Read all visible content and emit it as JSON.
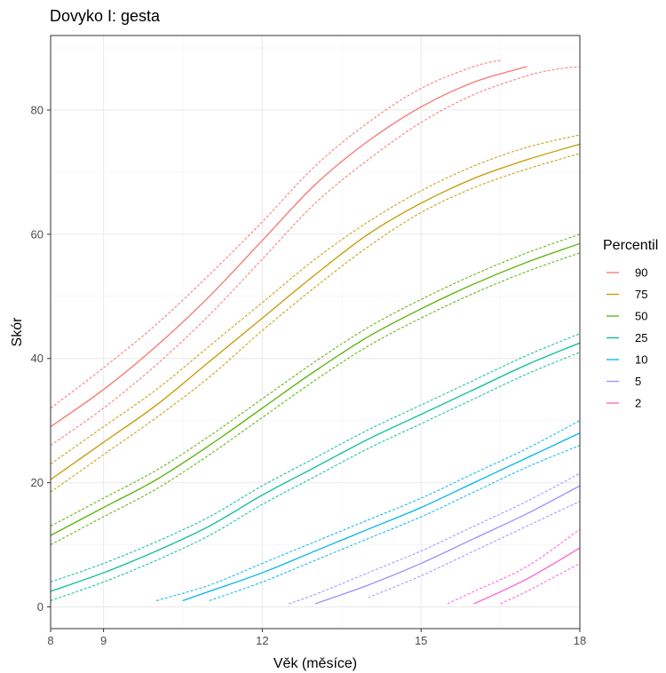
{
  "chart_data": {
    "type": "line",
    "title": "Dovyko I: gesta",
    "xlabel": "Věk (měsíce)",
    "ylabel": "Skór",
    "xlim": [
      8,
      18
    ],
    "ylim": [
      -3.5,
      92
    ],
    "x_ticks": [
      8,
      9,
      12,
      15,
      18
    ],
    "x_minor_grid": [
      10.5,
      13.5,
      16.5
    ],
    "y_ticks": [
      0,
      20,
      40,
      60,
      80
    ],
    "y_minor_grid": [
      10,
      30,
      50,
      70,
      90
    ],
    "grid": true,
    "legend": {
      "title": "Percentil",
      "position": "right"
    },
    "series": [
      {
        "name": "90",
        "color": "#F8766D",
        "x": [
          8,
          9,
          10,
          11,
          12,
          13,
          14,
          15,
          16,
          17
        ],
        "y": [
          29,
          35,
          42,
          50,
          59,
          68,
          75,
          80.5,
          84.5,
          87
        ],
        "upper": {
          "x": [
            8,
            9,
            10,
            11,
            12,
            13,
            14,
            15,
            16,
            16.5
          ],
          "y": [
            32,
            38.5,
            45.5,
            53.5,
            62,
            71,
            78,
            83.5,
            87,
            88
          ]
        },
        "lower": {
          "x": [
            8,
            9,
            10,
            11,
            12,
            13,
            14,
            15,
            16,
            17,
            17.5,
            18
          ],
          "y": [
            26,
            32,
            39,
            47,
            56,
            65,
            72,
            78,
            82.5,
            85.5,
            86.5,
            87
          ]
        }
      },
      {
        "name": "75",
        "color": "#C49A00",
        "x": [
          8,
          9,
          10,
          11,
          12,
          13,
          14,
          15,
          16,
          17,
          18
        ],
        "y": [
          20.5,
          26.5,
          32.5,
          39.5,
          46.5,
          53.5,
          60,
          65,
          69,
          72,
          74.5
        ],
        "upper": {
          "x": [
            8,
            9,
            10,
            11,
            12,
            13,
            14,
            15,
            16,
            17,
            18
          ],
          "y": [
            23,
            29,
            35,
            42,
            49,
            56,
            62,
            67,
            71,
            74,
            76
          ]
        },
        "lower": {
          "x": [
            8,
            9,
            10,
            11,
            12,
            13,
            14,
            15,
            16,
            17,
            18
          ],
          "y": [
            18.5,
            24.5,
            30.5,
            37,
            44.5,
            51.5,
            58,
            63.5,
            67.5,
            70.5,
            73
          ]
        }
      },
      {
        "name": "50",
        "color": "#53B400",
        "x": [
          8,
          9,
          10,
          11,
          12,
          13,
          14,
          15,
          16,
          17,
          18
        ],
        "y": [
          11.5,
          16,
          20.5,
          26,
          32,
          38,
          43.5,
          48,
          52,
          55.5,
          58.5
        ],
        "upper": {
          "x": [
            8,
            9,
            10,
            11,
            12,
            13,
            14,
            15,
            16,
            17,
            18
          ],
          "y": [
            13,
            17.5,
            22,
            27.5,
            33.5,
            39.5,
            45,
            49.5,
            53.5,
            57,
            60
          ]
        },
        "lower": {
          "x": [
            8,
            9,
            10,
            11,
            12,
            13,
            14,
            15,
            16,
            17,
            18
          ],
          "y": [
            10,
            14.5,
            19,
            24.5,
            30.5,
            36.5,
            42,
            46.5,
            50.5,
            54,
            57
          ]
        }
      },
      {
        "name": "25",
        "color": "#00C094",
        "x": [
          8,
          9,
          10,
          11,
          12,
          13,
          14,
          15,
          16,
          17,
          18
        ],
        "y": [
          2.5,
          5.5,
          9,
          13,
          18,
          22.5,
          27,
          31,
          35,
          39,
          42.5
        ],
        "upper": {
          "x": [
            8,
            9,
            10,
            11,
            12,
            13,
            14,
            15,
            16,
            17,
            18
          ],
          "y": [
            4,
            7,
            10.5,
            14.5,
            19.5,
            24,
            28.5,
            32.5,
            36.5,
            40.5,
            44
          ]
        },
        "lower": {
          "x": [
            8,
            9,
            10,
            11,
            12,
            13,
            14,
            15,
            16,
            17,
            18
          ],
          "y": [
            1,
            4,
            7.5,
            11.5,
            16.5,
            21,
            25.5,
            29.5,
            33.5,
            37.5,
            41
          ]
        }
      },
      {
        "name": "10",
        "color": "#00B6EB",
        "x": [
          10.5,
          11,
          12,
          13,
          14,
          15,
          16,
          17,
          18
        ],
        "y": [
          1,
          2.5,
          5.5,
          9,
          12.5,
          16,
          20,
          24,
          28
        ],
        "upper": {
          "x": [
            10,
            11,
            12,
            13,
            14,
            15,
            16,
            17,
            18
          ],
          "y": [
            1,
            3.5,
            7,
            10.5,
            14,
            17.5,
            21.5,
            25.5,
            30
          ]
        },
        "lower": {
          "x": [
            11,
            12,
            13,
            14,
            15,
            16,
            17,
            18
          ],
          "y": [
            1,
            4,
            7.5,
            11,
            14.5,
            18.5,
            22.5,
            26
          ]
        }
      },
      {
        "name": "5",
        "color": "#A58AFF",
        "x": [
          13,
          14,
          15,
          16,
          17,
          18
        ],
        "y": [
          0.5,
          3.5,
          7,
          11,
          15,
          19.5
        ],
        "upper": {
          "x": [
            12.5,
            13,
            14,
            15,
            16,
            17,
            18
          ],
          "y": [
            0.5,
            2,
            5.5,
            9,
            13,
            17,
            21.5
          ]
        },
        "lower": {
          "x": [
            14,
            15,
            16,
            17,
            18
          ],
          "y": [
            1.5,
            5,
            9,
            13,
            17
          ]
        }
      },
      {
        "name": "2",
        "color": "#FB61D7",
        "x": [
          16,
          17,
          18
        ],
        "y": [
          0.5,
          4.5,
          9.5
        ],
        "upper": {
          "x": [
            15.5,
            16,
            17,
            18
          ],
          "y": [
            0.5,
            2.5,
            6.5,
            12.5
          ]
        },
        "lower": {
          "x": [
            16.5,
            17,
            18
          ],
          "y": [
            0.5,
            2.5,
            7
          ]
        }
      }
    ]
  }
}
